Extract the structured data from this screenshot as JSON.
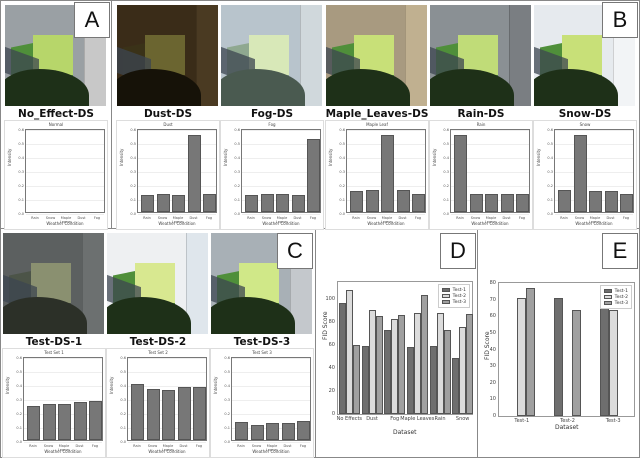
{
  "panels": {
    "A": {
      "label": "A"
    },
    "B": {
      "label": "B"
    },
    "C": {
      "label": "C"
    },
    "D": {
      "label": "D"
    },
    "E": {
      "label": "E"
    }
  },
  "datasets": [
    {
      "name": "No_Effect-DS",
      "chart_title": "Normal"
    },
    {
      "name": "Dust-DS",
      "chart_title": "Dust"
    },
    {
      "name": "Fog-DS",
      "chart_title": "Fog"
    },
    {
      "name": "Maple_Leaves-DS",
      "chart_title": "Maple Leaf"
    },
    {
      "name": "Rain-DS",
      "chart_title": "Rain"
    },
    {
      "name": "Snow-DS",
      "chart_title": "Snow"
    }
  ],
  "test_sets": [
    {
      "name": "Test-DS-1",
      "chart_title": "Test Set 1"
    },
    {
      "name": "Test-DS-2",
      "chart_title": "Test Set 2"
    },
    {
      "name": "Test-DS-3",
      "chart_title": "Test Set 3"
    }
  ],
  "mini_axis": {
    "xlabel": "Weather Condition",
    "ylabel": "Intensity",
    "categories": [
      "Rain",
      "Snow",
      "Maple Leaves",
      "Dust",
      "Fog"
    ],
    "yticks": [
      "0.0",
      "0.1",
      "0.2",
      "0.3",
      "0.4",
      "0.5",
      "0.6"
    ]
  },
  "chart_data": [
    {
      "type": "bar",
      "title": "Normal",
      "xlabel": "Weather Condition",
      "ylabel": "Intensity",
      "categories": [
        "Rain",
        "Snow",
        "Maple Leaves",
        "Dust",
        "Fog"
      ],
      "values": [
        0,
        0,
        0,
        0,
        0
      ],
      "ylim": [
        0,
        0.6
      ]
    },
    {
      "type": "bar",
      "title": "Dust",
      "xlabel": "Weather Condition",
      "ylabel": "Intensity",
      "categories": [
        "Rain",
        "Snow",
        "Maple Leaves",
        "Dust",
        "Fog"
      ],
      "values": [
        0.12,
        0.125,
        0.12,
        0.55,
        0.13
      ],
      "ylim": [
        0,
        0.6
      ]
    },
    {
      "type": "bar",
      "title": "Fog",
      "xlabel": "Weather Condition",
      "ylabel": "Intensity",
      "categories": [
        "Rain",
        "Snow",
        "Maple Leaves",
        "Dust",
        "Fog"
      ],
      "values": [
        0.12,
        0.13,
        0.125,
        0.12,
        0.52
      ],
      "ylim": [
        0,
        0.6
      ]
    },
    {
      "type": "bar",
      "title": "Maple Leaf",
      "xlabel": "Weather Condition",
      "ylabel": "Intensity",
      "categories": [
        "Rain",
        "Snow",
        "Maple Leaves",
        "Dust",
        "Fog"
      ],
      "values": [
        0.15,
        0.16,
        0.55,
        0.155,
        0.125
      ],
      "ylim": [
        0,
        0.6
      ]
    },
    {
      "type": "bar",
      "title": "Rain",
      "xlabel": "Weather Condition",
      "ylabel": "Intensity",
      "categories": [
        "Rain",
        "Snow",
        "Maple Leaves",
        "Dust",
        "Fog"
      ],
      "values": [
        0.55,
        0.125,
        0.13,
        0.125,
        0.13
      ],
      "ylim": [
        0,
        0.6
      ]
    },
    {
      "type": "bar",
      "title": "Snow",
      "xlabel": "Weather Condition",
      "ylabel": "Intensity",
      "categories": [
        "Rain",
        "Snow",
        "Maple Leaves",
        "Dust",
        "Fog"
      ],
      "values": [
        0.155,
        0.55,
        0.15,
        0.15,
        0.13
      ],
      "ylim": [
        0,
        0.6
      ]
    },
    {
      "type": "bar",
      "title": "Test Set 1",
      "xlabel": "Weather Condition",
      "ylabel": "Intensity",
      "categories": [
        "Rain",
        "Snow",
        "Maple Leaves",
        "Dust",
        "Fog"
      ],
      "values": [
        0.24,
        0.255,
        0.26,
        0.27,
        0.275
      ],
      "ylim": [
        0,
        0.6
      ]
    },
    {
      "type": "bar",
      "title": "Test Set 2",
      "xlabel": "Weather Condition",
      "ylabel": "Intensity",
      "categories": [
        "Rain",
        "Snow",
        "Maple Leaves",
        "Dust",
        "Fog"
      ],
      "values": [
        0.4,
        0.365,
        0.36,
        0.375,
        0.375
      ],
      "ylim": [
        0,
        0.6
      ]
    },
    {
      "type": "bar",
      "title": "Test Set 3",
      "xlabel": "Weather Condition",
      "ylabel": "Intensity",
      "categories": [
        "Rain",
        "Snow",
        "Maple Leaves",
        "Dust",
        "Fog"
      ],
      "values": [
        0.125,
        0.105,
        0.12,
        0.12,
        0.135
      ],
      "ylim": [
        0,
        0.6
      ]
    },
    {
      "type": "bar",
      "title": "",
      "xlabel": "Dataset",
      "ylabel": "FID Score",
      "categories": [
        "No Effects",
        "Dust",
        "Fog",
        "Maple Leaves",
        "Rain",
        "Snow"
      ],
      "series": [
        {
          "name": "Test-1",
          "values": [
            97,
            59,
            73,
            58,
            59,
            49
          ],
          "color": "#6e6e6e"
        },
        {
          "name": "Test-2",
          "values": [
            108,
            91,
            83,
            88,
            88,
            76
          ],
          "color": "#dcdcdc"
        },
        {
          "name": "Test-3",
          "values": [
            60,
            85,
            86,
            104,
            73,
            87
          ],
          "color": "#a0a0a0"
        }
      ],
      "yticks": [
        0,
        20,
        40,
        60,
        80,
        100
      ],
      "ylim": [
        0,
        115
      ],
      "legend": "upper right"
    },
    {
      "type": "bar",
      "title": "",
      "xlabel": "Dataset",
      "ylabel": "FID Score",
      "categories": [
        "Test-1",
        "Test-2",
        "Test-3"
      ],
      "series": [
        {
          "name": "Test-1",
          "values": [
            0,
            71,
            77
          ],
          "color": "#6e6e6e"
        },
        {
          "name": "Test-2",
          "values": [
            71,
            0,
            64
          ],
          "color": "#dcdcdc"
        },
        {
          "name": "Test-3",
          "values": [
            77,
            64,
            0
          ],
          "color": "#a0a0a0"
        }
      ],
      "yticks": [
        0,
        10,
        20,
        30,
        40,
        50,
        60,
        70,
        80
      ],
      "ylim": [
        0,
        80
      ],
      "legend": "upper right"
    }
  ]
}
